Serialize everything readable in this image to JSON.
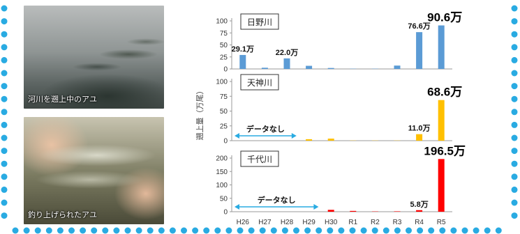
{
  "photos": [
    {
      "caption": "河川を遡上中のアユ"
    },
    {
      "caption": "釣り上げられたアユ"
    }
  ],
  "chart_data": {
    "type": "bar",
    "ylabel": "遡上量（万尾）",
    "categories": [
      "H26",
      "H27",
      "H28",
      "H29",
      "H30",
      "R1",
      "R2",
      "R3",
      "R4",
      "R5"
    ],
    "panels": [
      {
        "river": "日野川",
        "color": "#5b9bd5",
        "ylim": [
          0,
          100
        ],
        "yticks": [
          0,
          25,
          50,
          75,
          100
        ],
        "values": [
          29.1,
          2.5,
          22.0,
          6.5,
          2.0,
          0.5,
          0.5,
          7.0,
          76.6,
          90.6
        ],
        "labels": [
          {
            "index": 0,
            "text": "29.1万",
            "size": "s"
          },
          {
            "index": 2,
            "text": "22.0万",
            "size": "s"
          },
          {
            "index": 8,
            "text": "76.6万",
            "size": "s"
          },
          {
            "index": 9,
            "text": "90.6万",
            "size": "l"
          }
        ]
      },
      {
        "river": "天神川",
        "color": "#ffc000",
        "ylim": [
          0,
          100
        ],
        "yticks": [
          0,
          25,
          50,
          75,
          100
        ],
        "values": [
          null,
          null,
          null,
          2.5,
          3.5,
          0.3,
          0.3,
          0.3,
          11.0,
          68.6
        ],
        "labels": [
          {
            "index": 8,
            "text": "11.0万",
            "size": "s"
          },
          {
            "index": 9,
            "text": "68.6万",
            "size": "l"
          }
        ],
        "nodata": {
          "text": "データなし",
          "from": 0,
          "to": 2
        }
      },
      {
        "river": "千代川",
        "color": "#ff0000",
        "ylim": [
          0,
          200
        ],
        "yticks": [
          0,
          50,
          100,
          150,
          200
        ],
        "values": [
          null,
          null,
          null,
          null,
          7.0,
          3.0,
          1.0,
          1.5,
          5.8,
          196.5
        ],
        "labels": [
          {
            "index": 8,
            "text": "5.8万",
            "size": "s"
          },
          {
            "index": 9,
            "text": "196.5万",
            "size": "l"
          }
        ],
        "nodata": {
          "text": "データなし",
          "from": 0,
          "to": 3
        }
      }
    ]
  }
}
